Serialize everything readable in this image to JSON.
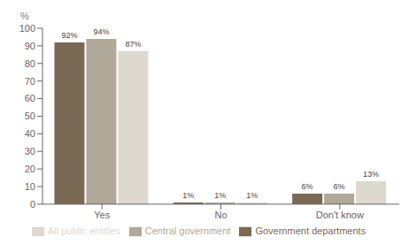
{
  "chart_data": {
    "type": "bar",
    "y_label": "%",
    "categories": [
      "Yes",
      "No",
      "Don't know"
    ],
    "series": [
      {
        "name": "Government departments",
        "color": "#7a6a55",
        "values": [
          92,
          1,
          6
        ],
        "value_labels": [
          "92%",
          "1%",
          "6%"
        ]
      },
      {
        "name": "Central government",
        "color": "#b0a898",
        "values": [
          94,
          1,
          6
        ],
        "value_labels": [
          "94%",
          "1%",
          "6%"
        ]
      },
      {
        "name": "All public entities",
        "color": "#ddd9cf",
        "values": [
          87,
          1,
          13
        ],
        "value_labels": [
          "87%",
          "1%",
          "13%"
        ]
      }
    ],
    "ylim": [
      0,
      100
    ],
    "yticks": [
      0,
      10,
      20,
      30,
      40,
      50,
      60,
      70,
      80,
      90,
      100
    ],
    "grid": false,
    "legend": "bottom",
    "data_labels": true
  }
}
